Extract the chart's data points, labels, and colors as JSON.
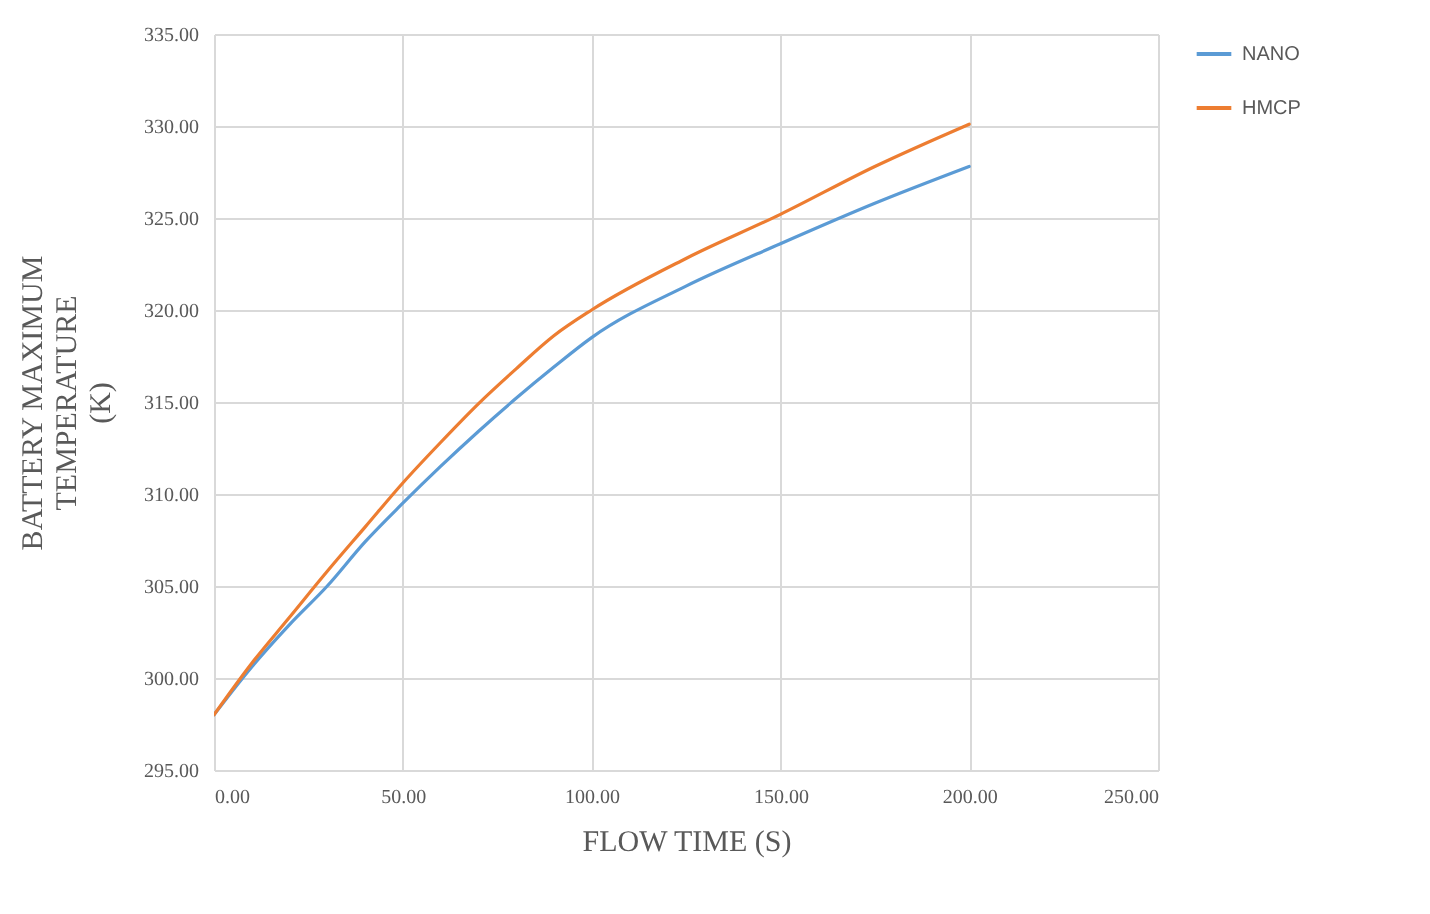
{
  "chart_data": {
    "type": "line",
    "xlabel": "FLOW TIME (S)",
    "ylabel": "BATTERY MAXIMUM\nTEMPERATURE\n(K)",
    "x": [
      0,
      10,
      20,
      30,
      40,
      50,
      60,
      70,
      80,
      90,
      100,
      125,
      150,
      175,
      200
    ],
    "series": [
      {
        "name": "NANO",
        "color": "#5b9bd5",
        "values": [
          298,
          300.6,
          302.9,
          305.0,
          307.4,
          309.5,
          311.5,
          313.4,
          315.2,
          316.9,
          318.5,
          321.3,
          323.6,
          325.8,
          327.8
        ]
      },
      {
        "name": "HMCP",
        "color": "#ed7d31",
        "values": [
          298,
          300.8,
          303.3,
          305.8,
          308.2,
          310.6,
          312.8,
          314.9,
          316.8,
          318.6,
          320.0,
          322.8,
          325.2,
          327.8,
          330.1
        ]
      }
    ],
    "xlim": [
      0,
      250
    ],
    "xticks": [
      {
        "value": 0,
        "label": "0.00"
      },
      {
        "value": 50,
        "label": "50.00"
      },
      {
        "value": 100,
        "label": "100.00"
      },
      {
        "value": 150,
        "label": "150.00"
      },
      {
        "value": 200,
        "label": "200.00"
      },
      {
        "value": 250,
        "label": "250.00"
      }
    ],
    "ylim": [
      295,
      335
    ],
    "yticks": [
      {
        "value": 295,
        "label": "295.00"
      },
      {
        "value": 300,
        "label": "300.00"
      },
      {
        "value": 305,
        "label": "305.00"
      },
      {
        "value": 310,
        "label": "310.00"
      },
      {
        "value": 315,
        "label": "315.00"
      },
      {
        "value": 320,
        "label": "320.00"
      },
      {
        "value": 325,
        "label": "325.00"
      },
      {
        "value": 330,
        "label": "330.00"
      },
      {
        "value": 335,
        "label": "335.00"
      }
    ],
    "grid": true,
    "legend": "right",
    "marker": "none",
    "line_style": "solid"
  }
}
